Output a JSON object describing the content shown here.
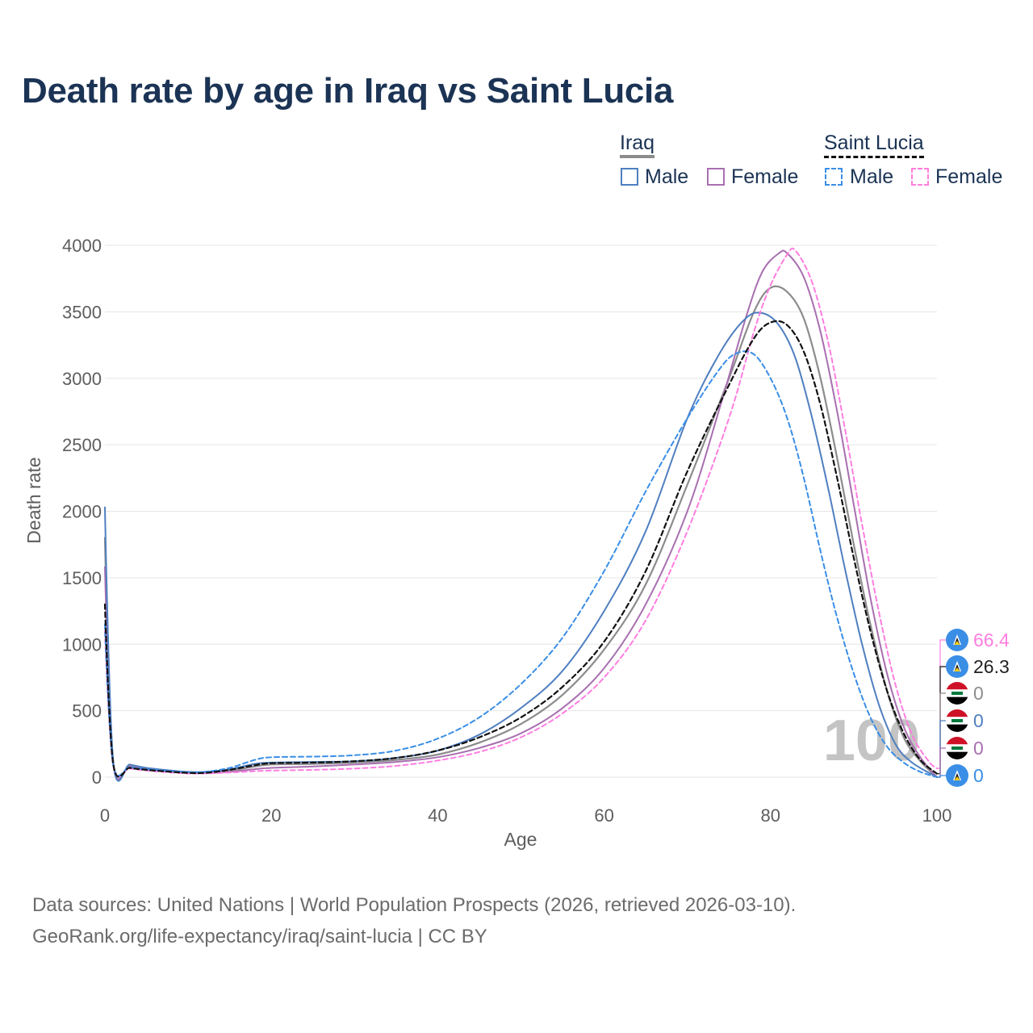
{
  "title": "Death rate by age in Iraq vs Saint Lucia",
  "legend": {
    "groups": [
      {
        "name": "Iraq",
        "male_label": "Male",
        "female_label": "Female"
      },
      {
        "name": "Saint Lucia",
        "male_label": "Male",
        "female_label": "Female"
      }
    ]
  },
  "colors": {
    "iraq_total": "#8c8c8c",
    "iraq_male": "#4f7fc0",
    "iraq_female": "#a86fb0",
    "lucia_total": "#111111",
    "lucia_male": "#3a8ee6",
    "lucia_female": "#ff7de0"
  },
  "watermark": "100",
  "end_labels": [
    {
      "text": "66.4",
      "series": "lucia_female",
      "flag": "saint-lucia"
    },
    {
      "text": "26.3",
      "series": "lucia_total",
      "flag": "saint-lucia"
    },
    {
      "text": "0",
      "series": "iraq_total",
      "flag": "iraq"
    },
    {
      "text": "0",
      "series": "iraq_male",
      "flag": "iraq"
    },
    {
      "text": "0",
      "series": "iraq_female",
      "flag": "iraq"
    },
    {
      "text": "0",
      "series": "lucia_male",
      "flag": "saint-lucia"
    }
  ],
  "sources": {
    "line1": "Data sources: United Nations | World Population Prospects (2026, retrieved 2026-03-10).",
    "line2": "GeoRank.org/life-expectancy/iraq/saint-lucia | CC BY"
  },
  "chart_data": {
    "type": "line",
    "title": "Death rate by age in Iraq vs Saint Lucia",
    "xlabel": "Age",
    "ylabel": "Death rate",
    "xlim": [
      0,
      100
    ],
    "ylim": [
      0,
      4000
    ],
    "xticks": [
      0,
      20,
      40,
      60,
      80,
      100
    ],
    "yticks": [
      0,
      500,
      1000,
      1500,
      2000,
      2500,
      3000,
      3500,
      4000
    ],
    "series": [
      {
        "name": "Iraq (total)",
        "key": "iraq_total",
        "dash": "solid",
        "points": [
          [
            0,
            1800
          ],
          [
            1,
            110
          ],
          [
            3,
            85
          ],
          [
            5,
            65
          ],
          [
            8,
            45
          ],
          [
            10,
            35
          ],
          [
            12,
            35
          ],
          [
            15,
            50
          ],
          [
            18,
            80
          ],
          [
            20,
            95
          ],
          [
            25,
            100
          ],
          [
            30,
            110
          ],
          [
            35,
            130
          ],
          [
            40,
            170
          ],
          [
            45,
            260
          ],
          [
            50,
            400
          ],
          [
            55,
            620
          ],
          [
            60,
            960
          ],
          [
            65,
            1450
          ],
          [
            70,
            2200
          ],
          [
            75,
            3000
          ],
          [
            78,
            3500
          ],
          [
            80,
            3680
          ],
          [
            82,
            3650
          ],
          [
            84,
            3450
          ],
          [
            86,
            3000
          ],
          [
            88,
            2400
          ],
          [
            90,
            1750
          ],
          [
            92,
            1150
          ],
          [
            94,
            650
          ],
          [
            96,
            300
          ],
          [
            98,
            120
          ],
          [
            100,
            0
          ]
        ]
      },
      {
        "name": "Iraq Male",
        "key": "iraq_male",
        "dash": "solid",
        "points": [
          [
            0,
            2030
          ],
          [
            1,
            120
          ],
          [
            3,
            95
          ],
          [
            5,
            70
          ],
          [
            8,
            50
          ],
          [
            10,
            40
          ],
          [
            12,
            40
          ],
          [
            15,
            60
          ],
          [
            18,
            100
          ],
          [
            20,
            110
          ],
          [
            25,
            115
          ],
          [
            30,
            120
          ],
          [
            35,
            145
          ],
          [
            40,
            200
          ],
          [
            45,
            320
          ],
          [
            50,
            520
          ],
          [
            55,
            800
          ],
          [
            60,
            1250
          ],
          [
            65,
            1850
          ],
          [
            70,
            2700
          ],
          [
            74,
            3200
          ],
          [
            77,
            3450
          ],
          [
            79,
            3490
          ],
          [
            81,
            3400
          ],
          [
            83,
            3150
          ],
          [
            85,
            2700
          ],
          [
            87,
            2150
          ],
          [
            89,
            1550
          ],
          [
            91,
            1000
          ],
          [
            93,
            550
          ],
          [
            95,
            250
          ],
          [
            97,
            110
          ],
          [
            100,
            0
          ]
        ]
      },
      {
        "name": "Iraq Female",
        "key": "iraq_female",
        "dash": "solid",
        "points": [
          [
            0,
            1580
          ],
          [
            1,
            100
          ],
          [
            3,
            80
          ],
          [
            5,
            60
          ],
          [
            8,
            40
          ],
          [
            10,
            32
          ],
          [
            12,
            30
          ],
          [
            15,
            40
          ],
          [
            18,
            60
          ],
          [
            20,
            70
          ],
          [
            25,
            80
          ],
          [
            30,
            95
          ],
          [
            35,
            115
          ],
          [
            40,
            150
          ],
          [
            45,
            220
          ],
          [
            50,
            330
          ],
          [
            55,
            520
          ],
          [
            60,
            820
          ],
          [
            65,
            1300
          ],
          [
            70,
            2000
          ],
          [
            74,
            2800
          ],
          [
            77,
            3450
          ],
          [
            79,
            3800
          ],
          [
            81,
            3940
          ],
          [
            82,
            3940
          ],
          [
            84,
            3760
          ],
          [
            86,
            3350
          ],
          [
            88,
            2750
          ],
          [
            90,
            2050
          ],
          [
            92,
            1350
          ],
          [
            94,
            780
          ],
          [
            96,
            380
          ],
          [
            98,
            150
          ],
          [
            100,
            0
          ]
        ]
      },
      {
        "name": "Saint Lucia (total)",
        "key": "lucia_total",
        "dash": "dashed",
        "points": [
          [
            0,
            1300
          ],
          [
            1,
            100
          ],
          [
            3,
            70
          ],
          [
            5,
            55
          ],
          [
            8,
            40
          ],
          [
            10,
            32
          ],
          [
            12,
            32
          ],
          [
            15,
            55
          ],
          [
            18,
            90
          ],
          [
            20,
            105
          ],
          [
            25,
            110
          ],
          [
            30,
            120
          ],
          [
            35,
            145
          ],
          [
            40,
            200
          ],
          [
            45,
            300
          ],
          [
            50,
            450
          ],
          [
            55,
            680
          ],
          [
            60,
            1020
          ],
          [
            65,
            1550
          ],
          [
            70,
            2300
          ],
          [
            75,
            2950
          ],
          [
            78,
            3300
          ],
          [
            80,
            3420
          ],
          [
            82,
            3400
          ],
          [
            84,
            3200
          ],
          [
            86,
            2800
          ],
          [
            88,
            2250
          ],
          [
            90,
            1650
          ],
          [
            92,
            1100
          ],
          [
            94,
            650
          ],
          [
            96,
            330
          ],
          [
            98,
            130
          ],
          [
            100,
            26.3
          ]
        ]
      },
      {
        "name": "Saint Lucia Male",
        "key": "lucia_male",
        "dash": "dashed",
        "points": [
          [
            0,
            1150
          ],
          [
            1,
            95
          ],
          [
            3,
            75
          ],
          [
            5,
            60
          ],
          [
            8,
            45
          ],
          [
            10,
            38
          ],
          [
            12,
            40
          ],
          [
            15,
            70
          ],
          [
            18,
            130
          ],
          [
            20,
            150
          ],
          [
            25,
            155
          ],
          [
            30,
            165
          ],
          [
            35,
            200
          ],
          [
            40,
            290
          ],
          [
            45,
            450
          ],
          [
            50,
            700
          ],
          [
            55,
            1050
          ],
          [
            60,
            1550
          ],
          [
            65,
            2150
          ],
          [
            70,
            2700
          ],
          [
            74,
            3080
          ],
          [
            76,
            3190
          ],
          [
            78,
            3180
          ],
          [
            80,
            3000
          ],
          [
            82,
            2700
          ],
          [
            84,
            2250
          ],
          [
            86,
            1700
          ],
          [
            88,
            1200
          ],
          [
            90,
            780
          ],
          [
            92,
            450
          ],
          [
            94,
            230
          ],
          [
            96,
            110
          ],
          [
            98,
            40
          ],
          [
            100,
            0
          ]
        ]
      },
      {
        "name": "Saint Lucia Female",
        "key": "lucia_female",
        "dash": "dashed",
        "points": [
          [
            0,
            1100
          ],
          [
            1,
            85
          ],
          [
            3,
            65
          ],
          [
            5,
            50
          ],
          [
            8,
            35
          ],
          [
            10,
            28
          ],
          [
            12,
            28
          ],
          [
            15,
            35
          ],
          [
            18,
            45
          ],
          [
            20,
            50
          ],
          [
            25,
            55
          ],
          [
            30,
            65
          ],
          [
            35,
            85
          ],
          [
            40,
            125
          ],
          [
            45,
            190
          ],
          [
            50,
            300
          ],
          [
            55,
            480
          ],
          [
            60,
            750
          ],
          [
            65,
            1180
          ],
          [
            70,
            1850
          ],
          [
            75,
            2700
          ],
          [
            78,
            3350
          ],
          [
            80,
            3700
          ],
          [
            82,
            3930
          ],
          [
            83,
            3960
          ],
          [
            85,
            3720
          ],
          [
            87,
            3250
          ],
          [
            89,
            2600
          ],
          [
            91,
            1900
          ],
          [
            93,
            1250
          ],
          [
            95,
            700
          ],
          [
            97,
            320
          ],
          [
            99,
            120
          ],
          [
            100,
            66.4
          ]
        ]
      }
    ]
  }
}
